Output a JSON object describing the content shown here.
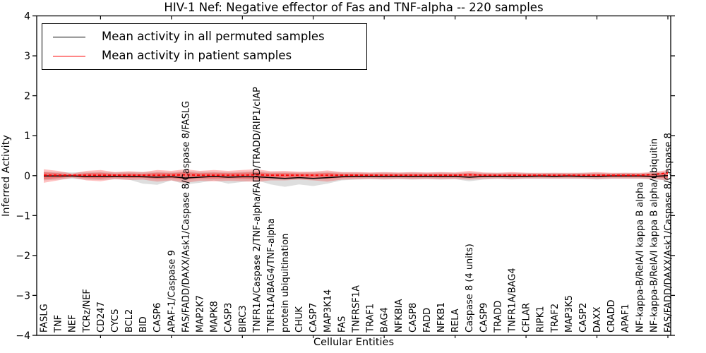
{
  "chart_data": {
    "type": "line",
    "title": "HIV-1 Nef: Negative effector of Fas and TNF-alpha -- 220 samples",
    "xlabel": "Cellular Entities",
    "ylabel": "Inferred Activity",
    "ylim": [
      -4,
      4
    ],
    "yticks": [
      4,
      3,
      2,
      1,
      0,
      -1,
      -2,
      -3,
      -4
    ],
    "grid": false,
    "legend_position": "upper left",
    "colors": {
      "permuted_line": "#000000",
      "patient_line": "#ff0000",
      "patient_band": "#ff0000",
      "permuted_band": "#888888"
    },
    "categories": [
      "FASLG",
      "TNF",
      "NEF",
      "TCRz/NEF",
      "CD247",
      "CYCS",
      "BCL2",
      "BID",
      "CASP6",
      "APAF-1/Caspase 9",
      "FAS/FADD/DAXX/Ask1/Caspase 8/Caspase 8/FASLG",
      "MAP2K7",
      "MAPK8",
      "CASP3",
      "BIRC3",
      "TNFR1A/Caspase 2/TNF-alpha/FADD/TRADD/RIP1/cIAP",
      "TNFR1A/BAG4/TNF-alpha",
      "protein ubiquitination",
      "CHUK",
      "CASP7",
      "MAP3K14",
      "FAS",
      "TNFRSF1A",
      "TRAF1",
      "BAG4",
      "NFKBIA",
      "CASP8",
      "FADD",
      "NFKB1",
      "RELA",
      "Caspase 8 (4 units)",
      "CASP9",
      "TRADD",
      "TNFR1A/BAG4",
      "CFLAR",
      "RIPK1",
      "TRAF2",
      "MAP3K5",
      "CASP2",
      "DAXX",
      "CRADD",
      "APAF1",
      "NF-kappa-B/RelA/I kappa B alpha",
      "NF-kappa-B/RelA/I kappa B alpha/ubiquitin",
      "FAS/FADD/DAXX/Ask1/Caspase 8/Caspase 8"
    ],
    "series": [
      {
        "name": "Mean activity in all permuted samples",
        "style": "solid",
        "values": [
          -0.01,
          -0.01,
          -0.01,
          -0.02,
          -0.02,
          -0.02,
          -0.02,
          -0.03,
          -0.04,
          -0.03,
          -0.06,
          -0.04,
          -0.02,
          -0.04,
          -0.03,
          -0.03,
          -0.05,
          -0.07,
          -0.05,
          -0.07,
          -0.05,
          -0.03,
          -0.02,
          -0.02,
          -0.02,
          -0.02,
          -0.02,
          -0.02,
          -0.02,
          -0.02,
          -0.04,
          -0.02,
          -0.02,
          -0.02,
          -0.02,
          -0.01,
          -0.02,
          -0.01,
          -0.02,
          -0.02,
          -0.01,
          -0.01,
          -0.01,
          -0.02,
          0.0
        ],
        "band_upper": [
          0.1,
          0.09,
          0.08,
          0.09,
          0.1,
          0.08,
          0.09,
          0.09,
          0.1,
          0.09,
          0.11,
          0.1,
          0.1,
          0.09,
          0.1,
          0.11,
          0.09,
          0.09,
          0.08,
          0.09,
          0.1,
          0.08,
          0.08,
          0.07,
          0.08,
          0.07,
          0.08,
          0.07,
          0.08,
          0.07,
          0.08,
          0.07,
          0.07,
          0.07,
          0.07,
          0.06,
          0.07,
          0.06,
          0.07,
          0.07,
          0.06,
          0.07,
          0.06,
          0.08,
          0.1
        ],
        "band_lower": [
          -0.12,
          -0.1,
          -0.08,
          -0.1,
          -0.11,
          -0.09,
          -0.1,
          -0.2,
          -0.23,
          -0.12,
          -0.22,
          -0.18,
          -0.12,
          -0.2,
          -0.16,
          -0.12,
          -0.22,
          -0.28,
          -0.22,
          -0.26,
          -0.2,
          -0.12,
          -0.1,
          -0.09,
          -0.1,
          -0.09,
          -0.1,
          -0.09,
          -0.1,
          -0.09,
          -0.14,
          -0.1,
          -0.08,
          -0.1,
          -0.08,
          -0.08,
          -0.08,
          -0.08,
          -0.08,
          -0.1,
          -0.08,
          -0.08,
          -0.08,
          -0.1,
          -0.12
        ]
      },
      {
        "name": "Mean activity in patient samples",
        "style": "dashed",
        "values": [
          0.01,
          0.01,
          0.01,
          0.01,
          0.01,
          0.01,
          0.01,
          0.01,
          0.01,
          0.01,
          0.02,
          0.01,
          0.01,
          0.01,
          0.01,
          0.02,
          0.01,
          0.01,
          0.01,
          0.01,
          0.01,
          0.01,
          0.01,
          0.01,
          0.01,
          0.01,
          0.01,
          0.01,
          0.01,
          0.01,
          0.02,
          0.01,
          0.01,
          0.01,
          0.01,
          0.01,
          0.01,
          0.01,
          0.01,
          0.01,
          0.01,
          0.01,
          0.01,
          0.03,
          0.07
        ],
        "band_upper": [
          0.16,
          0.12,
          0.05,
          0.12,
          0.14,
          0.09,
          0.11,
          0.09,
          0.14,
          0.12,
          0.16,
          0.12,
          0.14,
          0.12,
          0.14,
          0.16,
          0.11,
          0.12,
          0.1,
          0.1,
          0.13,
          0.09,
          0.09,
          0.08,
          0.09,
          0.08,
          0.09,
          0.08,
          0.09,
          0.08,
          0.12,
          0.08,
          0.07,
          0.09,
          0.07,
          0.07,
          0.07,
          0.07,
          0.07,
          0.09,
          0.07,
          0.07,
          0.07,
          0.09,
          0.14
        ],
        "band_lower": [
          -0.18,
          -0.12,
          -0.05,
          -0.12,
          -0.14,
          -0.09,
          -0.11,
          -0.1,
          -0.15,
          -0.12,
          -0.18,
          -0.13,
          -0.14,
          -0.13,
          -0.14,
          -0.16,
          -0.12,
          -0.12,
          -0.1,
          -0.12,
          -0.15,
          -0.1,
          -0.09,
          -0.08,
          -0.09,
          -0.08,
          -0.09,
          -0.08,
          -0.09,
          -0.08,
          -0.1,
          -0.08,
          -0.07,
          -0.08,
          -0.07,
          -0.07,
          -0.07,
          -0.07,
          -0.07,
          -0.08,
          -0.07,
          -0.07,
          -0.07,
          -0.08,
          -0.12
        ]
      }
    ]
  }
}
